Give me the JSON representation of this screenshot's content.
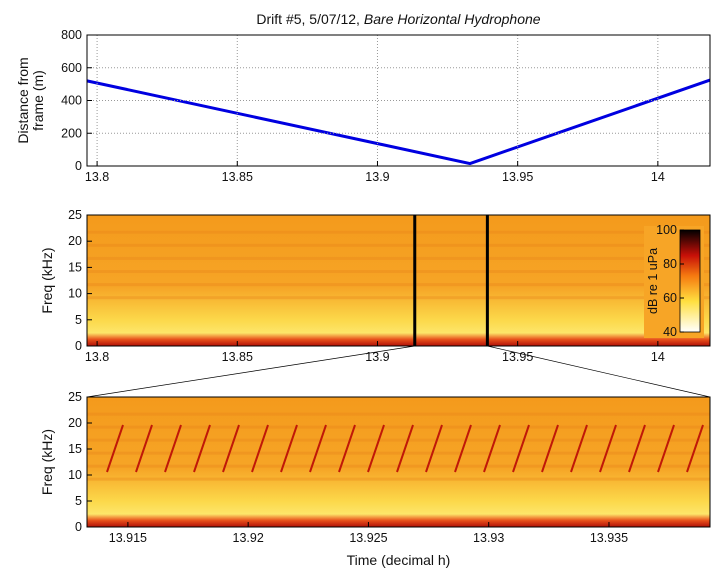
{
  "chart_data": [
    {
      "type": "line",
      "title": "Drift #5, 5/07/12,",
      "title_emphasis": "Bare Horizontal Hydrophone",
      "ylabel": [
        "Distance from",
        "frame (m)"
      ],
      "x": [
        13.7964,
        13.933,
        14.0186
      ],
      "series": [
        {
          "color": "#0000e0",
          "values": [
            520,
            15,
            525
          ]
        }
      ],
      "xlim": [
        13.7964,
        14.0186
      ],
      "xticks": [
        13.8,
        13.85,
        13.9,
        13.95,
        14
      ],
      "ylim": [
        0,
        800
      ],
      "yticks": [
        0,
        200,
        400,
        600,
        800
      ],
      "grid": true
    },
    {
      "type": "spectrogram",
      "ylabel": "Freq (kHz)",
      "xlim": [
        13.7964,
        14.0186
      ],
      "xticks": [
        13.8,
        13.85,
        13.9,
        13.95,
        14
      ],
      "ylim": [
        0,
        25
      ],
      "yticks": [
        0,
        5,
        10,
        15,
        20,
        25
      ],
      "zoom_range": [
        13.9133,
        13.9392
      ],
      "colorbar": {
        "label": "dB re 1 uPa",
        "lim": [
          40,
          100
        ],
        "ticks": [
          40,
          60,
          80,
          100
        ]
      }
    },
    {
      "type": "spectrogram",
      "ylabel": "Freq (kHz)",
      "xlabel": "Time (decimal h)",
      "xlim": [
        13.9133,
        13.9392
      ],
      "xticks": [
        13.915,
        13.92,
        13.925,
        13.93,
        13.935
      ],
      "ylim": [
        0,
        25
      ],
      "yticks": [
        0,
        5,
        10,
        15,
        20,
        25
      ]
    }
  ]
}
